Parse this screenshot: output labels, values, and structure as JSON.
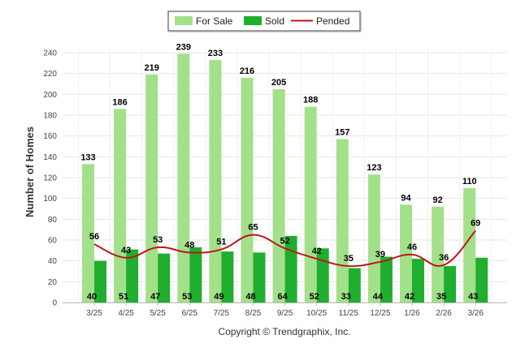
{
  "chart_data": {
    "type": "bar",
    "title": "",
    "xlabel": "",
    "ylabel": "Number of Homes",
    "ylim": [
      0,
      240
    ],
    "yticks": [
      0,
      20,
      40,
      60,
      80,
      100,
      120,
      140,
      160,
      180,
      200,
      220,
      240
    ],
    "grid": true,
    "legend_position": "top-center",
    "categories": [
      "3/25",
      "4/25",
      "5/25",
      "6/25",
      "7/25",
      "8/25",
      "9/25",
      "10/25",
      "11/25",
      "12/25",
      "1/26",
      "2/26",
      "3/26"
    ],
    "series": [
      {
        "name": "For Sale",
        "type": "bar",
        "color": "#a3e08a",
        "values": [
          133,
          186,
          219,
          239,
          233,
          216,
          205,
          188,
          157,
          123,
          94,
          92,
          110
        ]
      },
      {
        "name": "Sold",
        "type": "bar",
        "color": "#1fae2e",
        "values": [
          40,
          51,
          47,
          53,
          49,
          48,
          64,
          52,
          33,
          44,
          42,
          35,
          43
        ]
      },
      {
        "name": "Pended",
        "type": "line",
        "color": "#c0151b",
        "values": [
          56,
          43,
          53,
          48,
          51,
          65,
          52,
          42,
          35,
          39,
          46,
          36,
          69
        ]
      }
    ],
    "footer": "Copyright © Trendgraphix, Inc."
  }
}
